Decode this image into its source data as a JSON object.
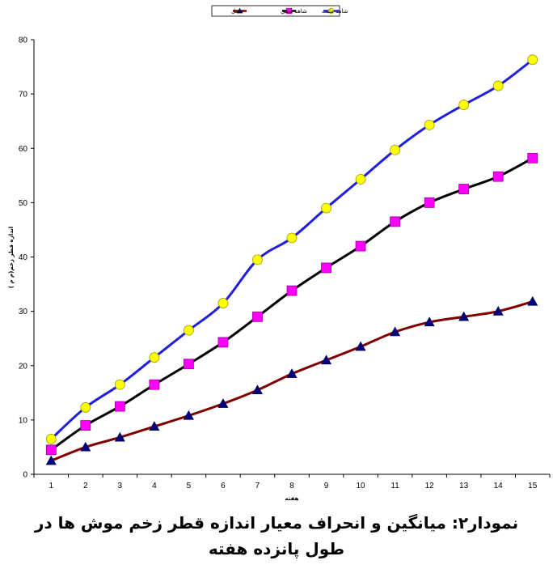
{
  "colors": {
    "positive": "#1f1fe0",
    "positive_marker": "#ffff00",
    "negative": "#000000",
    "negative_marker": "#ff00ff",
    "treatment": "#800000",
    "treatment_marker": "#000080"
  },
  "legend": {
    "entries": [
      "شاهد مثبت",
      "شاهد منفي",
      "عسل"
    ]
  },
  "caption": {
    "line1": "نمودار۲: میانگین و انحراف معیار اندازه قطر زخم موش ها در",
    "line2": "طول پانزده هفته"
  },
  "chart_data": {
    "type": "line",
    "title": "",
    "xlabel": "هفته",
    "ylabel": "اندازه قطر زخم(م م )",
    "x": [
      1,
      2,
      3,
      4,
      5,
      6,
      7,
      8,
      9,
      10,
      11,
      12,
      13,
      14,
      15
    ],
    "ylim": [
      0,
      80
    ],
    "yticks": [
      0,
      10,
      20,
      30,
      40,
      50,
      60,
      70,
      80
    ],
    "grid": false,
    "legend_position": "top",
    "series": [
      {
        "name": "شاهد مثبت",
        "marker": "circle",
        "values": [
          6.5,
          12.3,
          16.5,
          21.5,
          26.5,
          31.5,
          39.5,
          43.5,
          49,
          54.3,
          59.7,
          64.3,
          68,
          71.5,
          76.3
        ]
      },
      {
        "name": "شاهد منفي",
        "marker": "square",
        "values": [
          4.5,
          9,
          12.5,
          16.5,
          20.3,
          24.3,
          29,
          33.8,
          38,
          42,
          46.5,
          50,
          52.5,
          54.8,
          58.2
        ]
      },
      {
        "name": "عسل",
        "marker": "triangle",
        "values": [
          2.5,
          5,
          6.8,
          8.8,
          10.8,
          13,
          15.5,
          18.5,
          21,
          23.5,
          26.2,
          28,
          29,
          30,
          31.8
        ]
      }
    ]
  }
}
